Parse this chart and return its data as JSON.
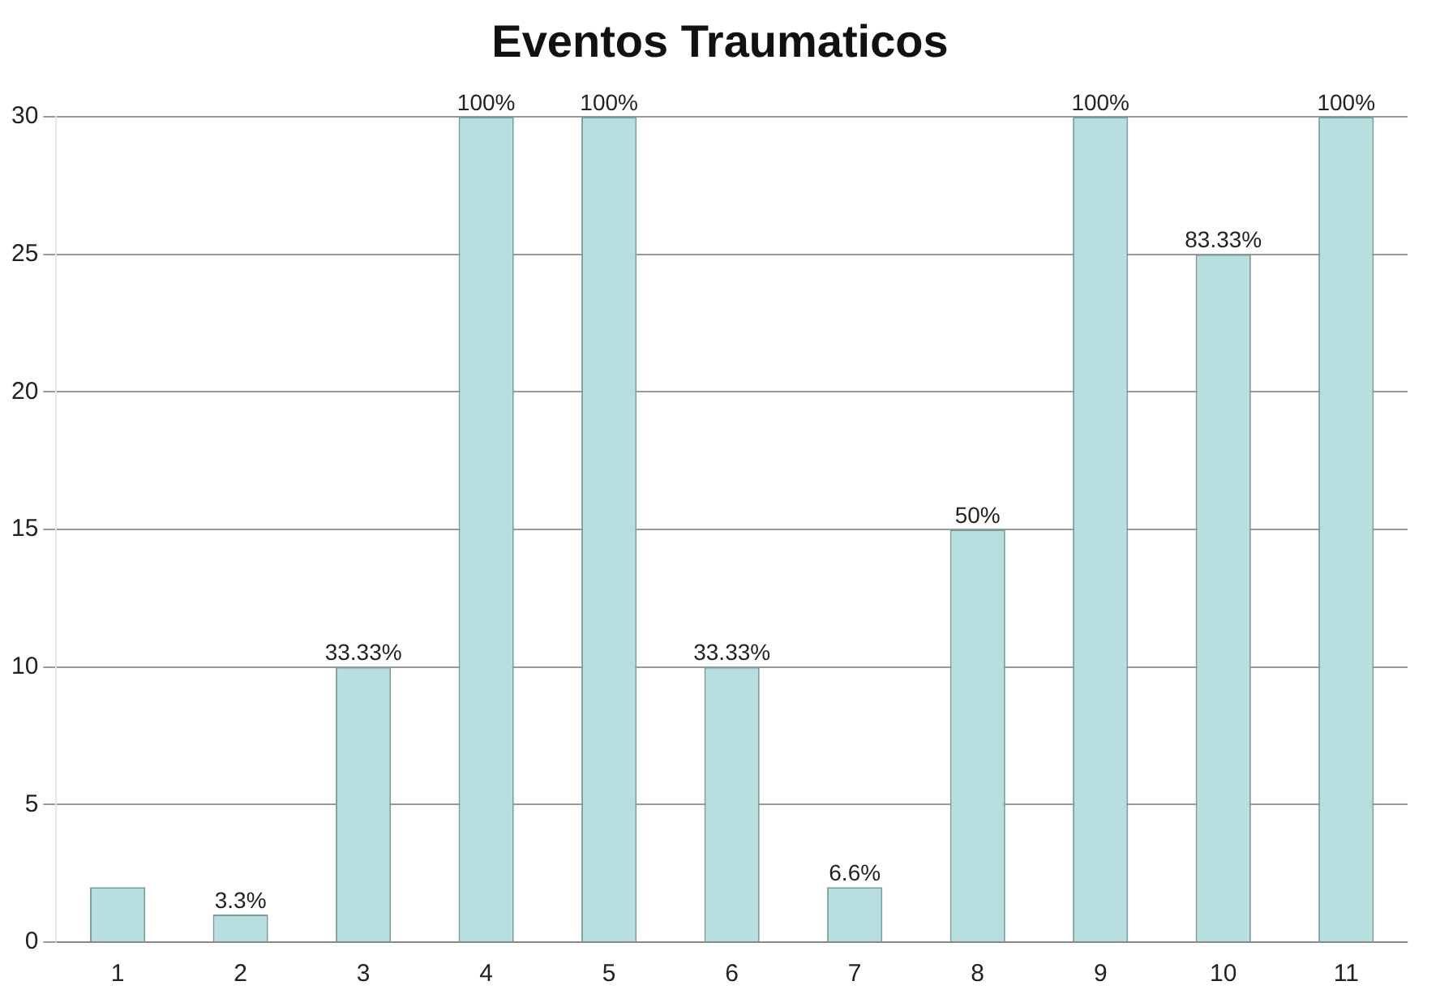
{
  "chart_data": {
    "type": "bar",
    "title": "Eventos Traumaticos",
    "categories": [
      "1",
      "2",
      "3",
      "4",
      "5",
      "6",
      "7",
      "8",
      "9",
      "10",
      "11"
    ],
    "values": [
      2,
      1,
      10,
      30,
      30,
      10,
      2,
      15,
      30,
      25,
      30
    ],
    "annotations": [
      {
        "text": "3.3%",
        "x": "2",
        "y": 1
      },
      {
        "text": "33.33%",
        "x": "3",
        "y": 10
      },
      {
        "text": "100%",
        "x": "4",
        "y": 30
      },
      {
        "text": "100%",
        "x": "5",
        "y": 30
      },
      {
        "text": "33.33%",
        "x": "6",
        "y": 10
      },
      {
        "text": "6.6%",
        "x": "7",
        "y": 2
      },
      {
        "text": "50%",
        "x": "8",
        "y": 15
      },
      {
        "text": "100%",
        "x": "9",
        "y": 30
      },
      {
        "text": "83.33%",
        "x": "10",
        "y": 25
      },
      {
        "text": "100%",
        "x": "11",
        "y": 30
      }
    ],
    "color": "#b7dfe0",
    "ylim": [
      0,
      30
    ],
    "yticks": [
      0,
      5,
      10,
      15,
      20,
      25,
      30
    ],
    "grid": "y",
    "legend": false
  }
}
